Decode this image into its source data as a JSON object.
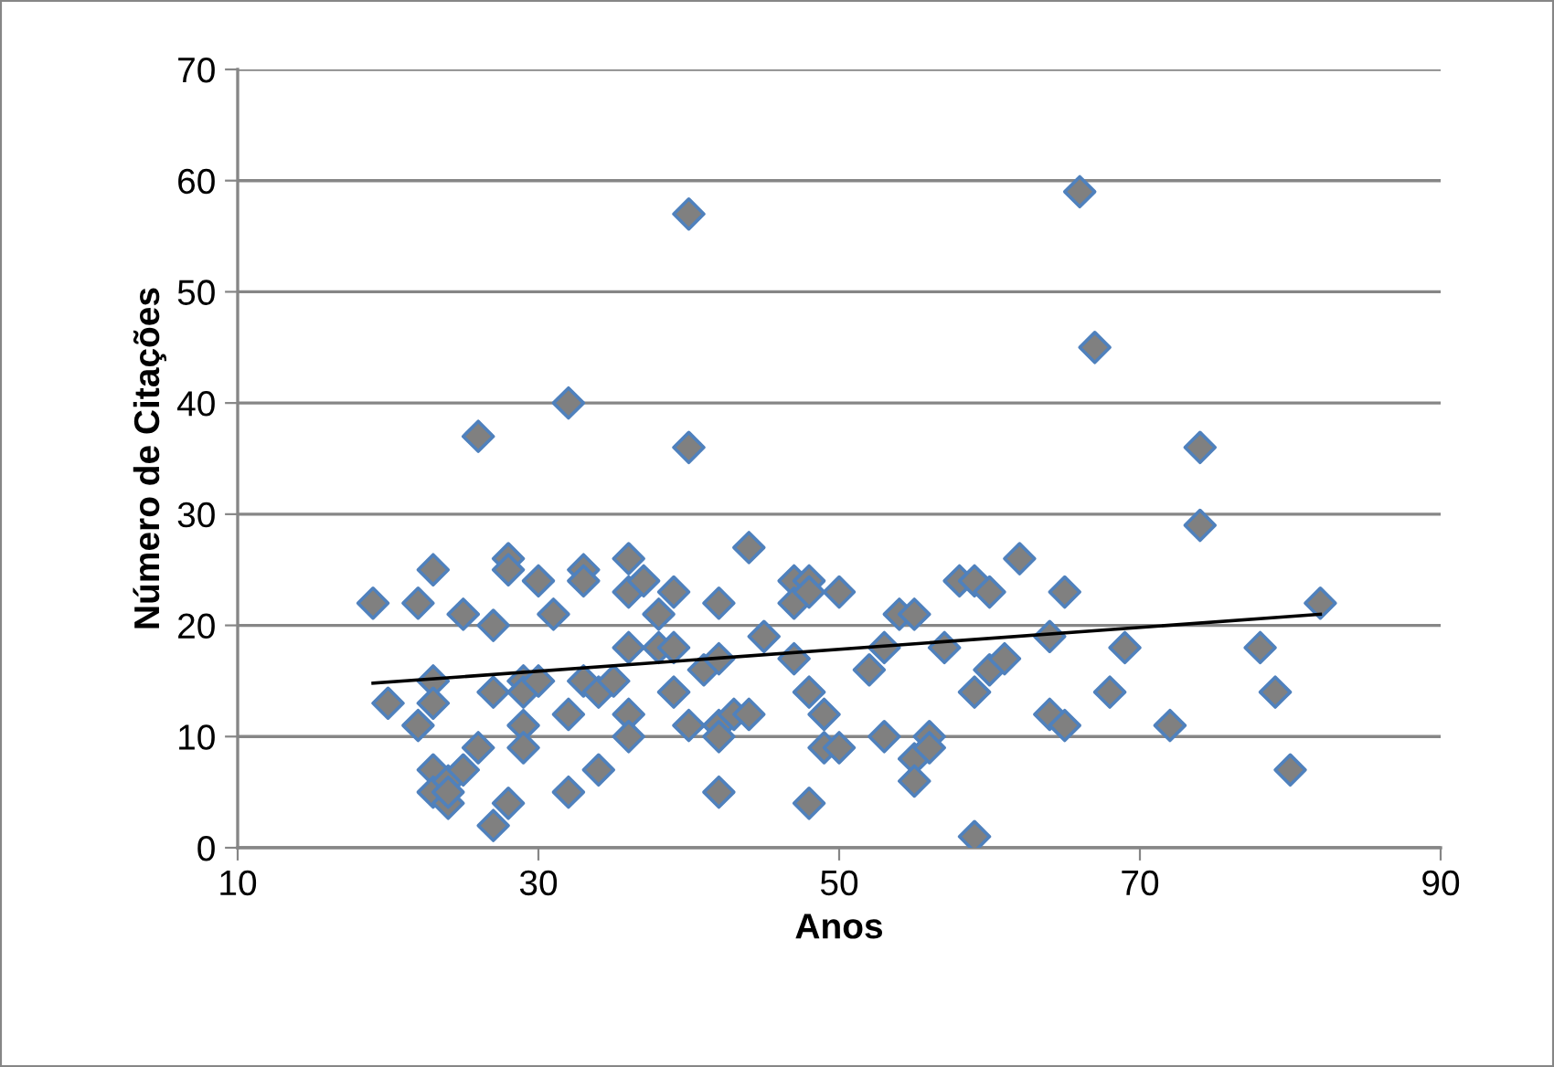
{
  "chart_data": {
    "type": "scatter",
    "xlabel": "Anos",
    "ylabel": "Número de Citações",
    "xlim": [
      10,
      90
    ],
    "xticks": [
      10,
      30,
      50,
      70,
      90
    ],
    "ylim": [
      0,
      70
    ],
    "yticks": [
      0,
      10,
      20,
      30,
      40,
      50,
      60,
      70
    ],
    "grid": "y",
    "marker": "diamond",
    "series": [
      {
        "color": "#808080",
        "x": [
          19,
          20,
          22,
          22,
          23,
          23,
          23,
          23,
          23,
          24,
          24,
          24,
          25,
          25,
          26,
          26,
          27,
          27,
          27,
          28,
          28,
          28,
          29,
          29,
          29,
          29,
          30,
          30,
          31,
          32,
          32,
          32,
          33,
          33,
          33,
          34,
          34,
          35,
          36,
          36,
          36,
          36,
          36,
          37,
          38,
          38,
          39,
          39,
          39,
          40,
          40,
          40,
          41,
          42,
          42,
          42,
          42,
          42,
          43,
          44,
          44,
          45,
          47,
          47,
          47,
          48,
          48,
          48,
          48,
          49,
          49,
          50,
          50,
          52,
          53,
          53,
          54,
          55,
          55,
          55,
          56,
          56,
          57,
          58,
          59,
          59,
          59,
          60,
          60,
          61,
          62,
          64,
          64,
          65,
          65,
          66,
          67,
          68,
          69,
          72,
          74,
          74,
          78,
          79,
          80,
          82
        ],
        "values": [
          22,
          13,
          22,
          11,
          25,
          15,
          13,
          7,
          5,
          6,
          4,
          5,
          21,
          7,
          37,
          9,
          20,
          14,
          2,
          26,
          25,
          4,
          15,
          14,
          11,
          9,
          24,
          15,
          21,
          40,
          12,
          5,
          25,
          24,
          15,
          14,
          7,
          15,
          26,
          23,
          18,
          12,
          10,
          24,
          21,
          18,
          23,
          18,
          14,
          57,
          36,
          11,
          16,
          22,
          17,
          11,
          10,
          5,
          12,
          27,
          12,
          19,
          24,
          22,
          17,
          24,
          23,
          14,
          4,
          12,
          9,
          23,
          9,
          16,
          18,
          10,
          21,
          21,
          8,
          6,
          10,
          9,
          18,
          24,
          24,
          14,
          1,
          23,
          16,
          17,
          26,
          19,
          12,
          23,
          11,
          59,
          45,
          14,
          18,
          11,
          36,
          29,
          18,
          14,
          7,
          22
        ]
      },
      {
        "type": "line",
        "color": "#000000",
        "x": [
          19,
          82
        ],
        "values": [
          14.8,
          21
        ],
        "marker": "none"
      }
    ]
  }
}
